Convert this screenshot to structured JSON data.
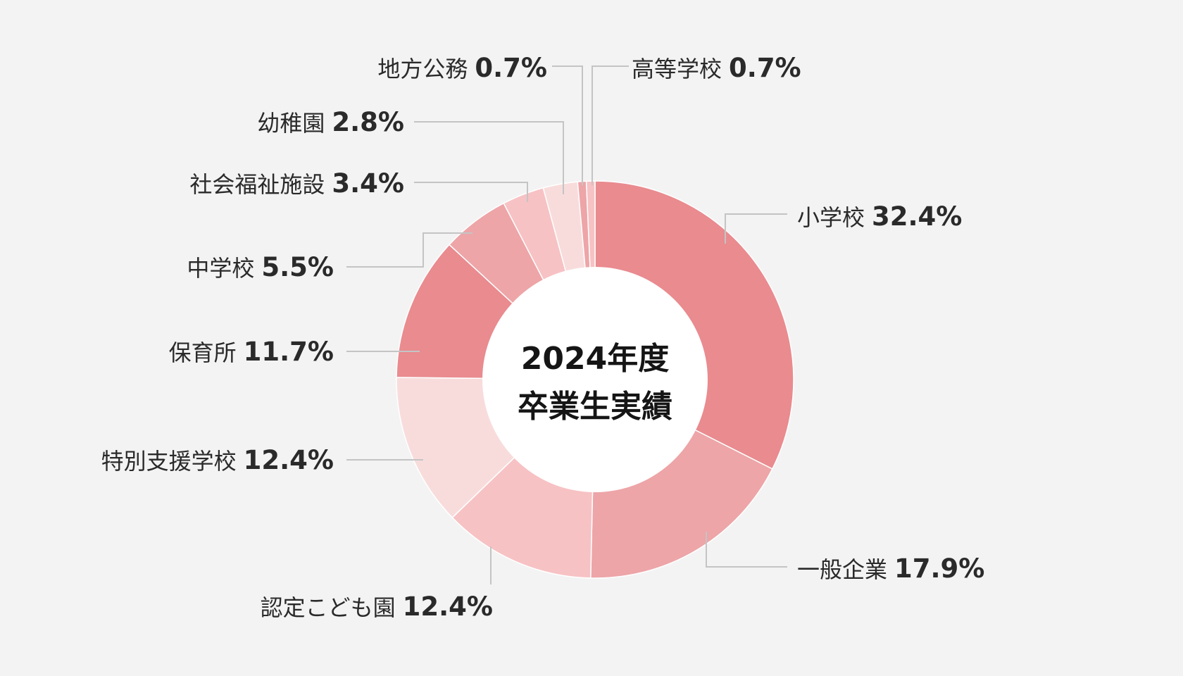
{
  "chart_data": {
    "type": "pie",
    "center_title_lines": [
      "2024年度",
      "卒業生実績"
    ],
    "slices": [
      {
        "label": "小学校",
        "value": 32.4,
        "value_text": "32.4%",
        "color": "#e98b8f"
      },
      {
        "label": "一般企業",
        "value": 17.9,
        "value_text": "17.9%",
        "color": "#eda5a8"
      },
      {
        "label": "認定こども園",
        "value": 12.4,
        "value_text": "12.4%",
        "color": "#f7c2c4"
      },
      {
        "label": "特別支援学校",
        "value": 12.4,
        "value_text": "12.4%",
        "color": "#f8dcdc"
      },
      {
        "label": "保育所",
        "value": 11.7,
        "value_text": "11.7%",
        "color": "#e98b8f"
      },
      {
        "label": "中学校",
        "value": 5.5,
        "value_text": "5.5%",
        "color": "#eda5a8"
      },
      {
        "label": "社会福祉施設",
        "value": 3.4,
        "value_text": "3.4%",
        "color": "#f7c2c4"
      },
      {
        "label": "幼稚園",
        "value": 2.8,
        "value_text": "2.8%",
        "color": "#f8dcdc"
      },
      {
        "label": "地方公務",
        "value": 0.7,
        "value_text": "0.7%",
        "color": "#eda5a8"
      },
      {
        "label": "高等学校",
        "value": 0.7,
        "value_text": "0.7%",
        "color": "#f7c2c4"
      }
    ]
  }
}
